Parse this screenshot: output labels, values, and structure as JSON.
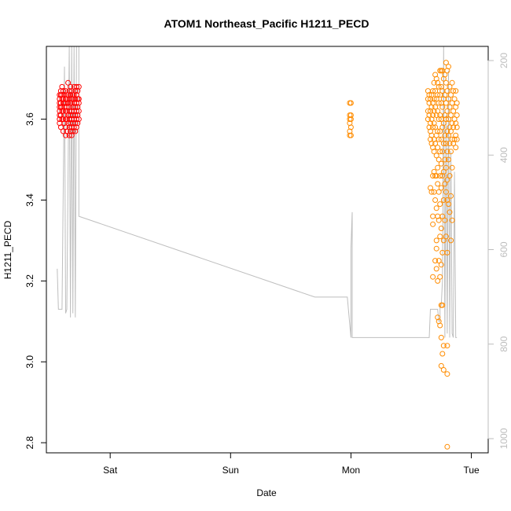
{
  "chart_data": {
    "type": "scatter",
    "title": "ATOM1 Northeast_Pacific H1211_PECD",
    "xlabel": "Date",
    "ylabel": "H1211_PECD",
    "x_ticks": [
      "Sat",
      "Sun",
      "Mon",
      "Tue"
    ],
    "x_tick_values": [
      0,
      1,
      2,
      3
    ],
    "xlim": [
      -0.53,
      3.14
    ],
    "ylim": [
      2.775,
      3.78
    ],
    "y_ticks": [
      2.8,
      3.0,
      3.2,
      3.4,
      3.6
    ],
    "y2_ticks": [
      200,
      400,
      600,
      800,
      1000
    ],
    "y2lim": [
      1030,
      170
    ],
    "y2_reversed": true,
    "grid": false,
    "colors": {
      "series_a": "#ff0000",
      "series_b": "#ff8c00",
      "pressure": "#bebebe",
      "right_axis": "#bdbdbd",
      "frame": "#000000"
    },
    "series": [
      {
        "color": "#ff0000",
        "points": [
          [
            -0.42,
            3.59
          ],
          [
            -0.42,
            3.6
          ],
          [
            -0.42,
            3.61
          ],
          [
            -0.42,
            3.62
          ],
          [
            -0.42,
            3.63
          ],
          [
            -0.42,
            3.64
          ],
          [
            -0.42,
            3.65
          ],
          [
            -0.42,
            3.66
          ],
          [
            -0.41,
            3.58
          ],
          [
            -0.41,
            3.61
          ],
          [
            -0.41,
            3.63
          ],
          [
            -0.41,
            3.64
          ],
          [
            -0.41,
            3.66
          ],
          [
            -0.41,
            3.67
          ],
          [
            -0.4,
            3.6
          ],
          [
            -0.4,
            3.62
          ],
          [
            -0.4,
            3.63
          ],
          [
            -0.4,
            3.65
          ],
          [
            -0.4,
            3.66
          ],
          [
            -0.4,
            3.68
          ],
          [
            -0.39,
            3.57
          ],
          [
            -0.39,
            3.6
          ],
          [
            -0.39,
            3.62
          ],
          [
            -0.39,
            3.64
          ],
          [
            -0.39,
            3.65
          ],
          [
            -0.39,
            3.67
          ],
          [
            -0.38,
            3.59
          ],
          [
            -0.38,
            3.61
          ],
          [
            -0.38,
            3.63
          ],
          [
            -0.38,
            3.64
          ],
          [
            -0.38,
            3.66
          ],
          [
            -0.37,
            3.56
          ],
          [
            -0.37,
            3.58
          ],
          [
            -0.37,
            3.6
          ],
          [
            -0.37,
            3.62
          ],
          [
            -0.37,
            3.64
          ],
          [
            -0.37,
            3.65
          ],
          [
            -0.37,
            3.67
          ],
          [
            -0.36,
            3.57
          ],
          [
            -0.36,
            3.6
          ],
          [
            -0.36,
            3.62
          ],
          [
            -0.36,
            3.63
          ],
          [
            -0.36,
            3.65
          ],
          [
            -0.36,
            3.66
          ],
          [
            -0.35,
            3.59
          ],
          [
            -0.35,
            3.61
          ],
          [
            -0.35,
            3.64
          ],
          [
            -0.35,
            3.66
          ],
          [
            -0.35,
            3.69
          ],
          [
            -0.34,
            3.56
          ],
          [
            -0.34,
            3.58
          ],
          [
            -0.34,
            3.6
          ],
          [
            -0.34,
            3.62
          ],
          [
            -0.34,
            3.63
          ],
          [
            -0.34,
            3.65
          ],
          [
            -0.34,
            3.67
          ],
          [
            -0.33,
            3.57
          ],
          [
            -0.33,
            3.59
          ],
          [
            -0.33,
            3.61
          ],
          [
            -0.33,
            3.64
          ],
          [
            -0.33,
            3.66
          ],
          [
            -0.33,
            3.68
          ],
          [
            -0.32,
            3.56
          ],
          [
            -0.32,
            3.58
          ],
          [
            -0.32,
            3.6
          ],
          [
            -0.32,
            3.62
          ],
          [
            -0.32,
            3.64
          ],
          [
            -0.32,
            3.65
          ],
          [
            -0.32,
            3.67
          ],
          [
            -0.31,
            3.57
          ],
          [
            -0.31,
            3.59
          ],
          [
            -0.31,
            3.61
          ],
          [
            -0.31,
            3.63
          ],
          [
            -0.31,
            3.65
          ],
          [
            -0.31,
            3.66
          ],
          [
            -0.3,
            3.58
          ],
          [
            -0.3,
            3.6
          ],
          [
            -0.3,
            3.62
          ],
          [
            -0.3,
            3.64
          ],
          [
            -0.3,
            3.66
          ],
          [
            -0.3,
            3.68
          ],
          [
            -0.29,
            3.57
          ],
          [
            -0.29,
            3.59
          ],
          [
            -0.29,
            3.61
          ],
          [
            -0.29,
            3.63
          ],
          [
            -0.29,
            3.65
          ],
          [
            -0.29,
            3.67
          ],
          [
            -0.28,
            3.58
          ],
          [
            -0.28,
            3.6
          ],
          [
            -0.28,
            3.62
          ],
          [
            -0.28,
            3.64
          ],
          [
            -0.28,
            3.66
          ],
          [
            -0.28,
            3.68
          ],
          [
            -0.27,
            3.59
          ],
          [
            -0.27,
            3.61
          ],
          [
            -0.27,
            3.63
          ],
          [
            -0.27,
            3.65
          ],
          [
            -0.27,
            3.67
          ],
          [
            -0.26,
            3.6
          ],
          [
            -0.26,
            3.62
          ],
          [
            -0.26,
            3.64
          ],
          [
            -0.26,
            3.65
          ],
          [
            -0.26,
            3.68
          ]
        ]
      },
      {
        "color": "#ff8c00",
        "points": [
          [
            1.99,
            3.56
          ],
          [
            1.99,
            3.57
          ],
          [
            1.99,
            3.59
          ],
          [
            1.99,
            3.6
          ],
          [
            1.99,
            3.61
          ],
          [
            1.99,
            3.64
          ],
          [
            2.0,
            3.56
          ],
          [
            2.0,
            3.58
          ],
          [
            2.0,
            3.6
          ],
          [
            2.0,
            3.61
          ],
          [
            2.0,
            3.64
          ],
          [
            2.64,
            3.6
          ],
          [
            2.64,
            3.62
          ],
          [
            2.64,
            3.65
          ],
          [
            2.64,
            3.67
          ],
          [
            2.65,
            3.58
          ],
          [
            2.65,
            3.61
          ],
          [
            2.65,
            3.64
          ],
          [
            2.65,
            3.66
          ],
          [
            2.66,
            3.43
          ],
          [
            2.66,
            3.55
          ],
          [
            2.66,
            3.57
          ],
          [
            2.66,
            3.59
          ],
          [
            2.66,
            3.62
          ],
          [
            2.66,
            3.65
          ],
          [
            2.67,
            3.42
          ],
          [
            2.67,
            3.54
          ],
          [
            2.67,
            3.56
          ],
          [
            2.67,
            3.6
          ],
          [
            2.67,
            3.63
          ],
          [
            2.67,
            3.66
          ],
          [
            2.68,
            3.21
          ],
          [
            2.68,
            3.34
          ],
          [
            2.68,
            3.36
          ],
          [
            2.68,
            3.46
          ],
          [
            2.68,
            3.53
          ],
          [
            2.68,
            3.58
          ],
          [
            2.68,
            3.61
          ],
          [
            2.68,
            3.64
          ],
          [
            2.68,
            3.67
          ],
          [
            2.69,
            3.42
          ],
          [
            2.69,
            3.47
          ],
          [
            2.69,
            3.52
          ],
          [
            2.69,
            3.55
          ],
          [
            2.69,
            3.59
          ],
          [
            2.69,
            3.62
          ],
          [
            2.69,
            3.65
          ],
          [
            2.69,
            3.69
          ],
          [
            2.7,
            3.25
          ],
          [
            2.7,
            3.4
          ],
          [
            2.7,
            3.46
          ],
          [
            2.7,
            3.54
          ],
          [
            2.7,
            3.58
          ],
          [
            2.7,
            3.63
          ],
          [
            2.7,
            3.67
          ],
          [
            2.7,
            3.71
          ],
          [
            2.71,
            3.23
          ],
          [
            2.71,
            3.28
          ],
          [
            2.71,
            3.3
          ],
          [
            2.71,
            3.38
          ],
          [
            2.71,
            3.46
          ],
          [
            2.71,
            3.51
          ],
          [
            2.71,
            3.56
          ],
          [
            2.71,
            3.61
          ],
          [
            2.71,
            3.65
          ],
          [
            2.71,
            3.7
          ],
          [
            2.72,
            3.11
          ],
          [
            2.72,
            3.2
          ],
          [
            2.72,
            3.36
          ],
          [
            2.72,
            3.44
          ],
          [
            2.72,
            3.48
          ],
          [
            2.72,
            3.53
          ],
          [
            2.72,
            3.57
          ],
          [
            2.72,
            3.62
          ],
          [
            2.72,
            3.66
          ],
          [
            2.72,
            3.69
          ],
          [
            2.73,
            3.1
          ],
          [
            2.73,
            3.25
          ],
          [
            2.73,
            3.35
          ],
          [
            2.73,
            3.42
          ],
          [
            2.73,
            3.5
          ],
          [
            2.73,
            3.55
          ],
          [
            2.73,
            3.6
          ],
          [
            2.73,
            3.64
          ],
          [
            2.73,
            3.68
          ],
          [
            2.74,
            3.09
          ],
          [
            2.74,
            3.21
          ],
          [
            2.74,
            3.31
          ],
          [
            2.74,
            3.39
          ],
          [
            2.74,
            3.46
          ],
          [
            2.74,
            3.52
          ],
          [
            2.74,
            3.57
          ],
          [
            2.74,
            3.61
          ],
          [
            2.74,
            3.66
          ],
          [
            2.74,
            3.72
          ],
          [
            2.75,
            2.99
          ],
          [
            2.75,
            3.06
          ],
          [
            2.75,
            3.14
          ],
          [
            2.75,
            3.24
          ],
          [
            2.75,
            3.33
          ],
          [
            2.75,
            3.43
          ],
          [
            2.75,
            3.49
          ],
          [
            2.75,
            3.55
          ],
          [
            2.75,
            3.6
          ],
          [
            2.75,
            3.64
          ],
          [
            2.75,
            3.68
          ],
          [
            2.75,
            3.72
          ],
          [
            2.76,
            3.02
          ],
          [
            2.76,
            3.14
          ],
          [
            2.76,
            3.27
          ],
          [
            2.76,
            3.36
          ],
          [
            2.76,
            3.46
          ],
          [
            2.76,
            3.52
          ],
          [
            2.76,
            3.58
          ],
          [
            2.76,
            3.63
          ],
          [
            2.76,
            3.67
          ],
          [
            2.76,
            3.72
          ],
          [
            2.77,
            2.98
          ],
          [
            2.77,
            3.04
          ],
          [
            2.77,
            3.3
          ],
          [
            2.77,
            3.4
          ],
          [
            2.77,
            3.47
          ],
          [
            2.77,
            3.54
          ],
          [
            2.77,
            3.59
          ],
          [
            2.77,
            3.65
          ],
          [
            2.77,
            3.7
          ],
          [
            2.78,
            3.35
          ],
          [
            2.78,
            3.44
          ],
          [
            2.78,
            3.5
          ],
          [
            2.78,
            3.56
          ],
          [
            2.78,
            3.61
          ],
          [
            2.78,
            3.66
          ],
          [
            2.78,
            3.71
          ],
          [
            2.79,
            3.31
          ],
          [
            2.79,
            3.42
          ],
          [
            2.79,
            3.48
          ],
          [
            2.79,
            3.54
          ],
          [
            2.79,
            3.6
          ],
          [
            2.79,
            3.64
          ],
          [
            2.79,
            3.69
          ],
          [
            2.79,
            3.74
          ],
          [
            2.8,
            2.79
          ],
          [
            2.8,
            2.97
          ],
          [
            2.8,
            3.04
          ],
          [
            2.8,
            3.27
          ],
          [
            2.8,
            3.4
          ],
          [
            2.8,
            3.45
          ],
          [
            2.8,
            3.52
          ],
          [
            2.8,
            3.57
          ],
          [
            2.8,
            3.62
          ],
          [
            2.8,
            3.67
          ],
          [
            2.8,
            3.72
          ],
          [
            2.81,
            3.39
          ],
          [
            2.81,
            3.5
          ],
          [
            2.81,
            3.56
          ],
          [
            2.81,
            3.6
          ],
          [
            2.81,
            3.65
          ],
          [
            2.81,
            3.73
          ],
          [
            2.82,
            3.37
          ],
          [
            2.82,
            3.46
          ],
          [
            2.82,
            3.54
          ],
          [
            2.82,
            3.58
          ],
          [
            2.82,
            3.63
          ],
          [
            2.82,
            3.68
          ],
          [
            2.83,
            3.3
          ],
          [
            2.83,
            3.41
          ],
          [
            2.83,
            3.52
          ],
          [
            2.83,
            3.57
          ],
          [
            2.83,
            3.61
          ],
          [
            2.83,
            3.66
          ],
          [
            2.84,
            3.35
          ],
          [
            2.84,
            3.48
          ],
          [
            2.84,
            3.55
          ],
          [
            2.84,
            3.59
          ],
          [
            2.84,
            3.64
          ],
          [
            2.84,
            3.69
          ],
          [
            2.85,
            3.54
          ],
          [
            2.85,
            3.58
          ],
          [
            2.85,
            3.62
          ],
          [
            2.85,
            3.67
          ],
          [
            2.86,
            3.55
          ],
          [
            2.86,
            3.6
          ],
          [
            2.86,
            3.65
          ],
          [
            2.87,
            3.53
          ],
          [
            2.87,
            3.56
          ],
          [
            2.87,
            3.59
          ],
          [
            2.87,
            3.63
          ],
          [
            2.87,
            3.67
          ],
          [
            2.88,
            3.55
          ],
          [
            2.88,
            3.58
          ],
          [
            2.88,
            3.61
          ],
          [
            2.88,
            3.64
          ]
        ]
      }
    ]
  }
}
